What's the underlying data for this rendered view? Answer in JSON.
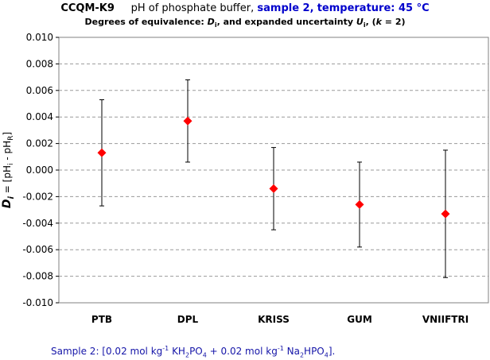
{
  "header": {
    "code": "CCQM-K9",
    "subject": "pH of phosphate buffer,",
    "sample": "sample 2,",
    "temperature": "temperature: 45 °C",
    "subtitle_a": "Degrees of equivalence:",
    "subtitle_b": "D",
    "subtitle_c": "i",
    "subtitle_d": ", and expanded uncertainty",
    "subtitle_e": "U",
    "subtitle_f": "i",
    "subtitle_g": ", (",
    "subtitle_h": "k",
    "subtitle_i": " = 2)"
  },
  "chart_data": {
    "type": "scatter",
    "categories": [
      "PTB",
      "DPL",
      "KRISS",
      "GUM",
      "VNIIFTRI"
    ],
    "values": [
      0.0013,
      0.0037,
      -0.0014,
      -0.0026,
      -0.0033
    ],
    "uncertainty": [
      0.004,
      0.0031,
      0.0031,
      0.0032,
      0.0048
    ],
    "ylim": [
      -0.01,
      0.01
    ],
    "yticks": [
      "0.010",
      "0.008",
      "0.006",
      "0.004",
      "0.002",
      "0.000",
      "-0.002",
      "-0.004",
      "-0.006",
      "-0.008",
      "-0.010"
    ],
    "ytick_values": [
      0.01,
      0.008,
      0.006,
      0.004,
      0.002,
      0.0,
      -0.002,
      -0.004,
      -0.006,
      -0.008,
      -0.01
    ],
    "ylabel_symbol": "D",
    "ylabel_sub": "i",
    "ylabel_eq": " = [pH",
    "ylabel_sub2": "i",
    "ylabel_mid": " - pH",
    "ylabel_sub3": "R",
    "ylabel_end": "]",
    "grid": "horizontal dashed",
    "marker": "diamond",
    "marker_color": "#ff0000"
  },
  "footnote": {
    "a": "Sample 2: [0.02 mol kg",
    "b": "-1",
    "c": " KH",
    "d": "2",
    "e": "PO",
    "f": "4",
    "g": " + 0.02 mol kg",
    "h": "-1",
    "i": " Na",
    "j": "2",
    "k": "HPO",
    "l": "4",
    "m": "]."
  }
}
